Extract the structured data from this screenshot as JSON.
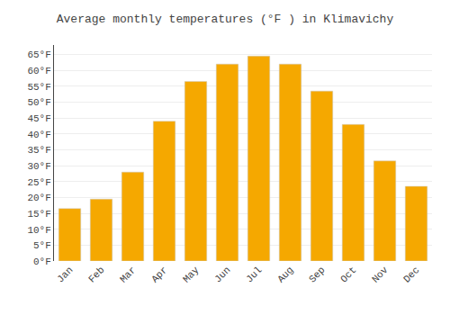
{
  "chart_data": {
    "type": "bar",
    "title": "Average monthly temperatures (°F ) in Klimavichy",
    "categories": [
      "Jan",
      "Feb",
      "Mar",
      "Apr",
      "May",
      "Jun",
      "Jul",
      "Aug",
      "Sep",
      "Oct",
      "Nov",
      "Dec"
    ],
    "values": [
      16.5,
      19.5,
      28.0,
      44.0,
      56.5,
      62.0,
      64.5,
      62.0,
      53.5,
      43.0,
      31.5,
      23.5
    ],
    "color": "#F5A800",
    "ylim": [
      0,
      68
    ],
    "yticks": [
      {
        "value": 0,
        "label": "0°F"
      },
      {
        "value": 5,
        "label": "5°F"
      },
      {
        "value": 10,
        "label": "10°F"
      },
      {
        "value": 15,
        "label": "15°F"
      },
      {
        "value": 20,
        "label": "20°F"
      },
      {
        "value": 25,
        "label": "25°F"
      },
      {
        "value": 30,
        "label": "30°F"
      },
      {
        "value": 35,
        "label": "35°F"
      },
      {
        "value": 40,
        "label": "40°F"
      },
      {
        "value": 45,
        "label": "45°F"
      },
      {
        "value": 50,
        "label": "50°F"
      },
      {
        "value": 55,
        "label": "55°F"
      },
      {
        "value": 60,
        "label": "60°F"
      },
      {
        "value": 65,
        "label": "65°F"
      }
    ],
    "grid": true
  }
}
